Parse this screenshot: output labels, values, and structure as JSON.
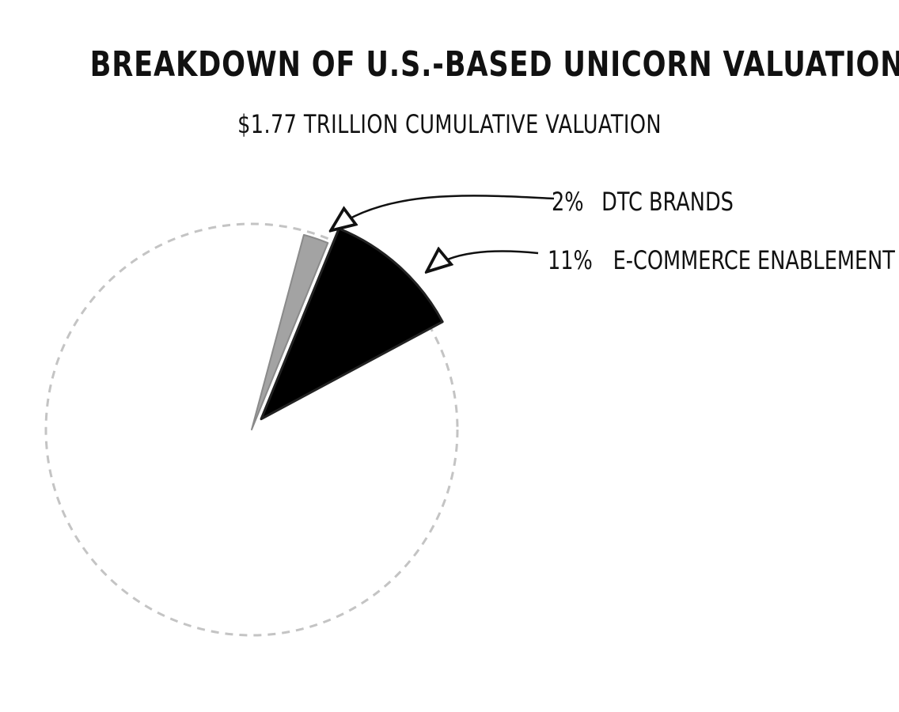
{
  "chart_data": {
    "type": "pie",
    "title": "BREAKDOWN OF U.S.-BASED UNICORN VALUATIONS",
    "subtitle": "$1.77 TRILLION CUMULATIVE VALUATION",
    "slices": [
      {
        "percent_label": "2%",
        "label": "DTC BRANDS",
        "value": 2,
        "color": "#a3a3a3"
      },
      {
        "percent_label": "11%",
        "label": "E-COMMERCE ENABLEMENT",
        "value": 11,
        "color": "#000000"
      }
    ],
    "remainder_value": 87,
    "remainder_style": "dashed outline, light gray"
  }
}
